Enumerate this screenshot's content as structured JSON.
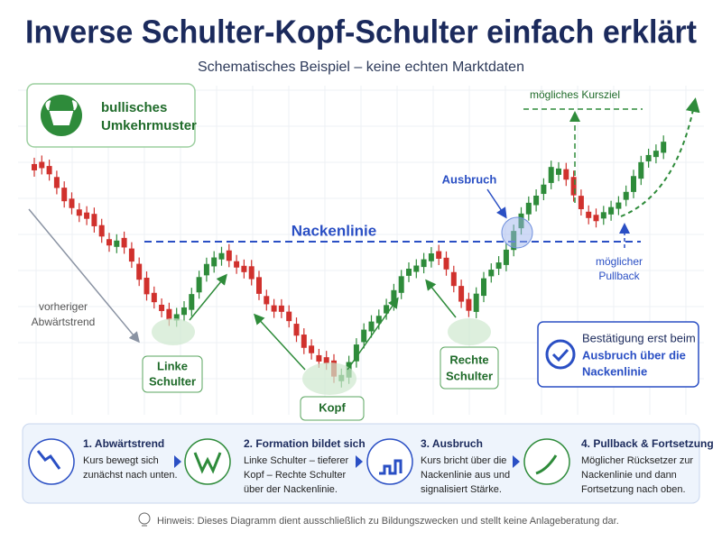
{
  "header": {
    "title": "Inverse Schulter-Kopf-Schulter einfach erklärt",
    "subtitle": "Schematisches Beispiel – keine echten Marktdaten"
  },
  "badge": {
    "lines": [
      "bullisches",
      "Umkehrmuster"
    ]
  },
  "labels": {
    "trend": [
      "vorheriger",
      "Abwärtstrend"
    ],
    "left_shoulder": [
      "Linke",
      "Schulter"
    ],
    "head": "Kopf",
    "right_shoulder": [
      "Rechte",
      "Schulter"
    ],
    "neckline": "Nackenlinie",
    "breakout": "Ausbruch",
    "target": "mögliches Kursziel",
    "pullback": [
      "möglicher",
      "Pullback"
    ]
  },
  "confirmation": {
    "lines": [
      "Bestätigung erst beim",
      "Ausbruch über die",
      "Nackenlinie"
    ]
  },
  "steps": [
    {
      "title": "1. Abwärtstrend",
      "lines": [
        "Kurs bewegt sich",
        "zunächst nach unten."
      ]
    },
    {
      "title": "2. Formation bildet sich",
      "lines": [
        "Linke Schulter – tieferer",
        "Kopf – Rechte Schulter",
        "über der Nackenlinie."
      ]
    },
    {
      "title": "3. Ausbruch",
      "lines": [
        "Kurs bricht über die",
        "Nackenlinie aus und",
        "signalisiert Stärke."
      ]
    },
    {
      "title": "4. Pullback & Fortsetzung",
      "lines": [
        "Möglicher Rücksetzer zur",
        "Nackenlinie und dann",
        "Fortsetzung nach oben."
      ]
    }
  ],
  "footer": "Hinweis: Dieses Diagramm dient ausschließlich zu Bildungszwecken und stellt keine Anlageberatung dar."
}
